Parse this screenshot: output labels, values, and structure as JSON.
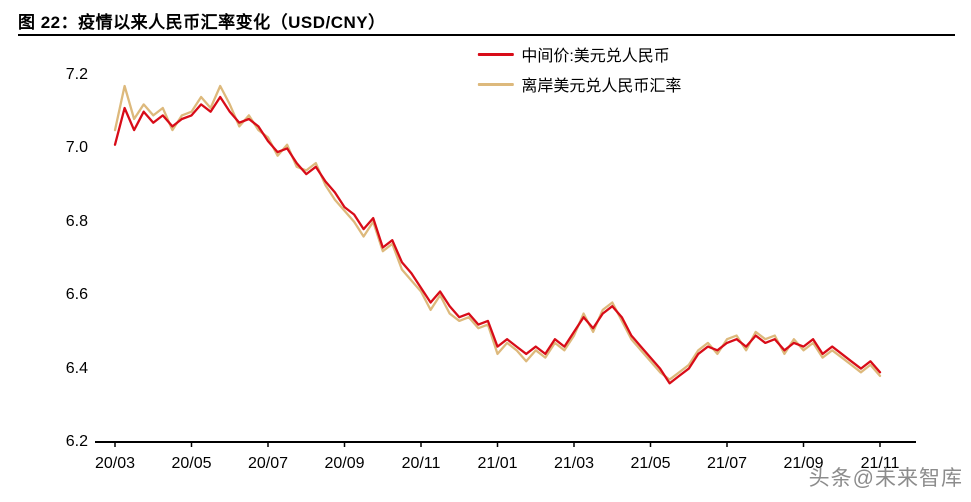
{
  "figure": {
    "title": "图  22：疫情以来人民币汇率变化（USD/CNY）",
    "watermark": "头条@未来智库"
  },
  "chart_data": {
    "type": "line",
    "title": "疫情以来人民币汇率变化（USD/CNY）",
    "xlabel": "",
    "ylabel": "",
    "grid": false,
    "legend_position": "top-center",
    "ylim": [
      6.2,
      7.2
    ],
    "y_ticks": [
      7.2,
      7.0,
      6.8,
      6.6,
      6.4,
      6.2
    ],
    "y_tick_labels": [
      "7.2",
      "7.0",
      "6.8",
      "6.6",
      "6.4",
      "6.2"
    ],
    "x_tick_labels": [
      "20/03",
      "20/05",
      "20/07",
      "20/09",
      "20/11",
      "21/01",
      "21/03",
      "21/05",
      "21/07",
      "21/09",
      "21/11"
    ],
    "x_tick_positions": [
      0,
      2,
      4,
      6,
      8,
      10,
      12,
      14,
      16,
      18,
      20
    ],
    "x_unit": "months since 2020/03",
    "x_start": 0,
    "x_step": 0.25,
    "series": [
      {
        "name": "中间价:美元兑人民币",
        "color": "#d80c18",
        "values": [
          7.01,
          7.11,
          7.05,
          7.1,
          7.07,
          7.09,
          7.06,
          7.08,
          7.09,
          7.12,
          7.1,
          7.14,
          7.1,
          7.07,
          7.08,
          7.06,
          7.02,
          6.99,
          7.0,
          6.96,
          6.93,
          6.95,
          6.91,
          6.88,
          6.84,
          6.82,
          6.78,
          6.81,
          6.73,
          6.75,
          6.69,
          6.66,
          6.62,
          6.58,
          6.61,
          6.57,
          6.54,
          6.55,
          6.52,
          6.53,
          6.46,
          6.48,
          6.46,
          6.44,
          6.46,
          6.44,
          6.48,
          6.46,
          6.5,
          6.54,
          6.51,
          6.55,
          6.57,
          6.54,
          6.49,
          6.46,
          6.43,
          6.4,
          6.36,
          6.38,
          6.4,
          6.44,
          6.46,
          6.45,
          6.47,
          6.48,
          6.46,
          6.49,
          6.47,
          6.48,
          6.45,
          6.47,
          6.46,
          6.48,
          6.44,
          6.46,
          6.44,
          6.42,
          6.4,
          6.42,
          6.39
        ]
      },
      {
        "name": "离岸美元兑人民币汇率",
        "color": "#ddb97c",
        "values": [
          7.05,
          7.17,
          7.08,
          7.12,
          7.09,
          7.11,
          7.05,
          7.09,
          7.1,
          7.14,
          7.11,
          7.17,
          7.12,
          7.06,
          7.09,
          7.05,
          7.03,
          6.98,
          7.01,
          6.95,
          6.94,
          6.96,
          6.9,
          6.86,
          6.83,
          6.8,
          6.76,
          6.8,
          6.72,
          6.74,
          6.67,
          6.64,
          6.61,
          6.56,
          6.6,
          6.55,
          6.53,
          6.54,
          6.51,
          6.52,
          6.44,
          6.47,
          6.45,
          6.42,
          6.45,
          6.43,
          6.47,
          6.45,
          6.49,
          6.55,
          6.5,
          6.56,
          6.58,
          6.53,
          6.48,
          6.45,
          6.42,
          6.39,
          6.37,
          6.39,
          6.41,
          6.45,
          6.47,
          6.44,
          6.48,
          6.49,
          6.45,
          6.5,
          6.48,
          6.49,
          6.44,
          6.48,
          6.45,
          6.47,
          6.43,
          6.45,
          6.43,
          6.41,
          6.39,
          6.41,
          6.38
        ]
      }
    ]
  }
}
